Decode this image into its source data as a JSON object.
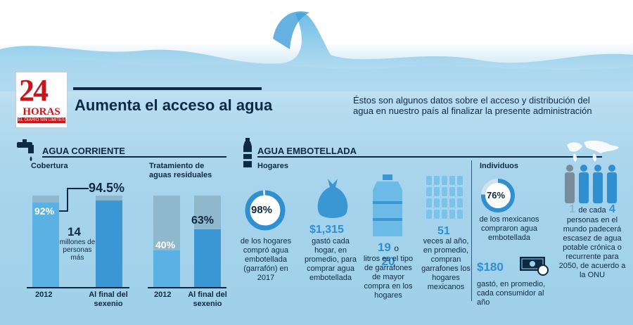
{
  "brand": {
    "number": "24",
    "name": "HORAS",
    "slogan": "EL DIARIO SIN LÍMITES"
  },
  "header": {
    "title": "Aumenta el acceso al agua",
    "subtitle": "Éstos son algunos datos sobre el acceso y distribución del agua en nuestro país al finalizar la presente administración"
  },
  "colors": {
    "accent": "#2f8fd1",
    "dark": "#0d2a44",
    "bar_2012": "#5ab2e4",
    "bar_final": "#3a97d4",
    "bar_bg": "#8fb8cc"
  },
  "icons": [
    "faucet-icon",
    "water-bottle-icon",
    "trash-bag-icon",
    "water-jug-icon",
    "bottles-grid-icon",
    "money-icon",
    "world-map-icon",
    "people-icon"
  ],
  "corriente": {
    "heading": "AGUA CORRIENTE",
    "cobertura": {
      "label": "Cobertura",
      "val_2012": "92%",
      "val_final": "94.5%",
      "note_number": "14",
      "note_text": "millones de personas más"
    },
    "tratamiento": {
      "label": "Tratamiento de aguas residuales",
      "val_2012": "40%",
      "val_final": "63%"
    },
    "x_2012": "2012",
    "x_final": "Al final del sexenio"
  },
  "embotellada": {
    "heading": "AGUA EMBOTELLADA",
    "hogares_label": "Hogares",
    "individuos_label": "Individuos",
    "stat1": {
      "value": "98%",
      "text": "de los hogares compró agua embotellada (garrafón) en 2017"
    },
    "stat2": {
      "value": "$1,315",
      "text": "gastó cada hogar, en promedio, para comprar agua embotellada"
    },
    "stat3": {
      "v1": "19",
      "conn": "o",
      "v2": "20",
      "text": "litros es el tipo de garrafones de mayor compra en los hogares"
    },
    "stat4": {
      "value": "51",
      "text": "veces al año, en promedio, compran garrafones los hogares mexicanos"
    },
    "stat5": {
      "value": "76%",
      "text": "de los mexicanos compraron agua embotellada"
    },
    "stat6": {
      "value": "$180",
      "text": "gastó, en promedio, cada consumidor al año"
    },
    "stat7": {
      "v1": "1",
      "mid": "de cada",
      "v2": "4",
      "text": "personas en el mundo padecerá escasez de agua potable crónica o recurrente para 2050, de acuerdo a la ONU"
    }
  },
  "chart_data": [
    {
      "type": "bar",
      "title": "Cobertura",
      "categories": [
        "2012",
        "Al final del sexenio"
      ],
      "values": [
        92,
        94.5
      ],
      "ylim": [
        0,
        100
      ]
    },
    {
      "type": "bar",
      "title": "Tratamiento de aguas residuales",
      "categories": [
        "2012",
        "Al final del sexenio"
      ],
      "values": [
        40,
        63
      ],
      "ylim": [
        0,
        100
      ]
    },
    {
      "type": "pie",
      "title": "Hogares",
      "categories": [
        "compró agua embotellada",
        "no"
      ],
      "values": [
        98,
        2
      ]
    },
    {
      "type": "pie",
      "title": "Individuos",
      "categories": [
        "compraron agua embotellada",
        "no"
      ],
      "values": [
        76,
        24
      ]
    }
  ]
}
